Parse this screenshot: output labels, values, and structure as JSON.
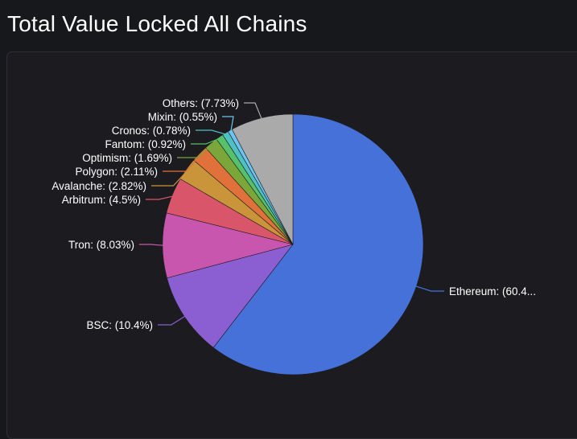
{
  "page": {
    "title": "Total Value Locked All Chains"
  },
  "chart_data": {
    "type": "pie",
    "slices": [
      {
        "name": "Ethereum",
        "value": 60.4,
        "label": "Ethereum: (60.4...",
        "color": "#4571d9"
      },
      {
        "name": "BSC",
        "value": 10.4,
        "label": "BSC: (10.4%)",
        "color": "#8b5ed1"
      },
      {
        "name": "Tron",
        "value": 8.03,
        "label": "Tron: (8.03%)",
        "color": "#c856ae"
      },
      {
        "name": "Arbitrum",
        "value": 4.5,
        "label": "Arbitrum: (4.5%)",
        "color": "#d9566a"
      },
      {
        "name": "Avalanche",
        "value": 2.82,
        "label": "Avalanche: (2.82%)",
        "color": "#c9943a"
      },
      {
        "name": "Polygon",
        "value": 2.11,
        "label": "Polygon: (2.11%)",
        "color": "#e0713a"
      },
      {
        "name": "Optimism",
        "value": 1.69,
        "label": "Optimism: (1.69%)",
        "color": "#7aa63a"
      },
      {
        "name": "Fantom",
        "value": 0.92,
        "label": "Fantom: (0.92%)",
        "color": "#56c06a"
      },
      {
        "name": "Cronos",
        "value": 0.78,
        "label": "Cronos: (0.78%)",
        "color": "#4fc0c4"
      },
      {
        "name": "Mixin",
        "value": 0.55,
        "label": "Mixin: (0.55%)",
        "color": "#6ec3f0"
      },
      {
        "name": "Others",
        "value": 7.73,
        "label": "Others: (7.73%)",
        "color": "#aaaaaa"
      }
    ]
  }
}
